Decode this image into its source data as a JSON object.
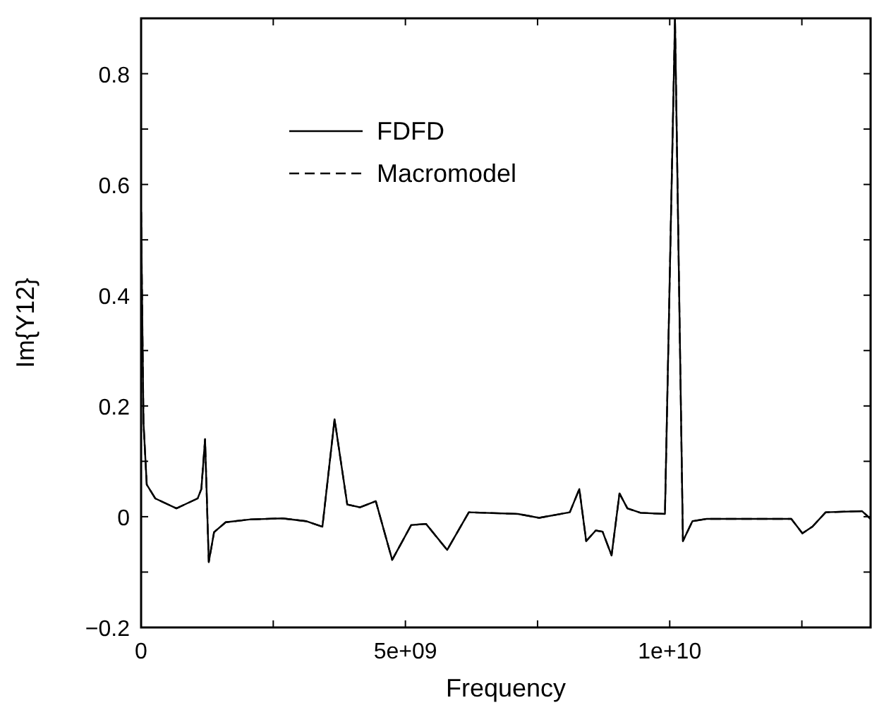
{
  "chart_data": {
    "type": "line",
    "xlabel": "Frequency",
    "ylabel": "Im{Y12}",
    "x": [
      0,
      45000000.0,
      107000000.0,
      267000000.0,
      668000000.0,
      1070000000.0,
      1140000000.0,
      1210000000.0,
      1280000000.0,
      1380000000.0,
      1600000000.0,
      2050000000.0,
      2670000000.0,
      3120000000.0,
      3430000000.0,
      3660000000.0,
      3900000000.0,
      4140000000.0,
      4440000000.0,
      4750000000.0,
      5110000000.0,
      5390000000.0,
      5790000000.0,
      6200000000.0,
      7130000000.0,
      7530000000.0,
      8110000000.0,
      8290000000.0,
      8420000000.0,
      8600000000.0,
      8730000000.0,
      8900000000.0,
      9050000000.0,
      9200000000.0,
      9450000000.0,
      9910000000.0,
      10100000000.0,
      10250000000.0,
      10430000000.0,
      10700000000.0,
      12300000000.0,
      12510000000.0,
      12700000000.0,
      12950000000.0,
      13640000000.0,
      13800000000.0
    ],
    "series": [
      {
        "name": "FDFD",
        "color": "#000000",
        "line_style": "solid",
        "values": [
          0.55,
          0.17,
          0.058,
          0.033,
          0.015,
          0.033,
          0.05,
          0.14,
          -0.082,
          -0.028,
          -0.01,
          -0.005,
          -0.003,
          -0.008,
          -0.018,
          0.176,
          0.022,
          0.017,
          0.028,
          -0.078,
          -0.015,
          -0.013,
          -0.06,
          0.008,
          0.005,
          -0.002,
          0.008,
          0.05,
          -0.044,
          -0.025,
          -0.027,
          -0.07,
          0.042,
          0.015,
          0.007,
          0.005,
          0.9,
          -0.044,
          -0.008,
          -0.004,
          -0.004,
          -0.03,
          -0.018,
          0.008,
          0.01,
          -0.004
        ]
      },
      {
        "name": "Macromodel",
        "color": "#000000",
        "line_style": "dashed",
        "values": [
          0.55,
          0.17,
          0.058,
          0.033,
          0.015,
          0.033,
          0.05,
          0.14,
          -0.082,
          -0.028,
          -0.01,
          -0.005,
          -0.003,
          -0.008,
          -0.018,
          0.176,
          0.022,
          0.017,
          0.028,
          -0.078,
          -0.015,
          -0.013,
          -0.06,
          0.008,
          0.005,
          -0.002,
          0.008,
          0.05,
          -0.044,
          -0.025,
          -0.027,
          -0.07,
          0.042,
          0.015,
          0.007,
          0.005,
          0.9,
          -0.044,
          -0.008,
          -0.004,
          -0.004,
          -0.03,
          -0.018,
          0.008,
          0.01,
          -0.004
        ]
      }
    ],
    "xlim": [
      0,
      13800000000.0
    ],
    "xticks": [
      {
        "value": 0,
        "label": "0"
      },
      {
        "value": 2500000000.0,
        "label": null
      },
      {
        "value": 5000000000.0,
        "label": "5e+09"
      },
      {
        "value": 7500000000.0,
        "label": null
      },
      {
        "value": 10000000000.0,
        "label": "1e+10"
      },
      {
        "value": 12500000000.0,
        "label": null
      }
    ],
    "ylim": [
      -0.2,
      0.9
    ],
    "yticks": [
      -0.2,
      {
        "value": -0.1,
        "label": null
      },
      0,
      {
        "value": 0.1,
        "label": null
      },
      0.2,
      {
        "value": 0.3,
        "label": null
      },
      0.4,
      {
        "value": 0.5,
        "label": null
      },
      0.6,
      {
        "value": 0.7,
        "label": null
      },
      0.8
    ],
    "grid": false,
    "legend": "top left",
    "marker": "none"
  }
}
